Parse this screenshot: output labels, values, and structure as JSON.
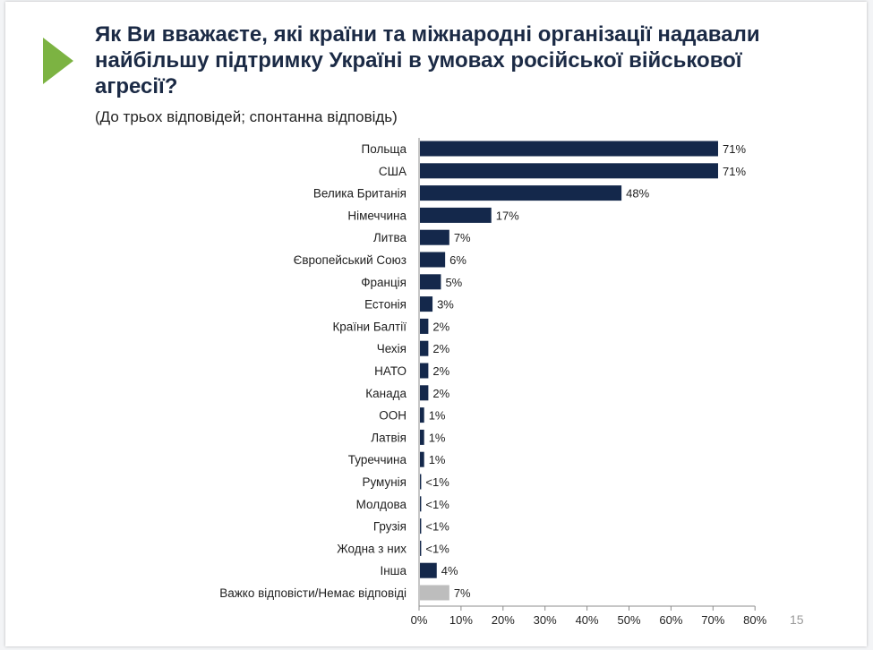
{
  "slide": {
    "title": "Як Ви вважаєте, які країни та міжнародні організації надавали найбільшу підтримку Україні в умовах російської військової агресії?",
    "subtitle": "(До трьох відповідей; спонтанна відповідь)",
    "page_number": "15",
    "accent_color": "#7cb342"
  },
  "chart_data": {
    "type": "bar",
    "orientation": "horizontal",
    "title": "Як Ви вважаєте, які країни та міжнародні організації надавали найбільшу підтримку Україні в умовах російської військової агресії?",
    "subtitle": "(До трьох відповідей; спонтанна відповідь)",
    "xlabel": "",
    "ylabel": "",
    "xlim": [
      0,
      80
    ],
    "ticks": [
      0,
      10,
      20,
      30,
      40,
      50,
      60,
      70,
      80
    ],
    "tick_labels": [
      "0%",
      "10%",
      "20%",
      "30%",
      "40%",
      "50%",
      "60%",
      "70%",
      "80%"
    ],
    "grid": false,
    "bar_color": "#14284b",
    "highlight_color": "#bdbdbd",
    "categories": [
      "Польща",
      "США",
      "Велика Британія",
      "Німеччина",
      "Литва",
      "Європейський Союз",
      "Франція",
      "Естонія",
      "Країни Балтії",
      "Чехія",
      "НАТО",
      "Канада",
      "ООН",
      "Латвія",
      "Туреччина",
      "Румунія",
      "Молдова",
      "Грузія",
      "Жодна з них",
      "Інша",
      "Важко відповісти/Немає відповіді"
    ],
    "values": [
      71,
      71,
      48,
      17,
      7,
      6,
      5,
      3,
      2,
      2,
      2,
      2,
      1,
      1,
      1,
      0.3,
      0.3,
      0.3,
      0.3,
      4,
      7
    ],
    "value_labels": [
      "71%",
      "71%",
      "48%",
      "17%",
      "7%",
      "6%",
      "5%",
      "3%",
      "2%",
      "2%",
      "2%",
      "2%",
      "1%",
      "1%",
      "1%",
      "<1%",
      "<1%",
      "<1%",
      "<1%",
      "4%",
      "7%"
    ],
    "bar_colors": [
      "#14284b",
      "#14284b",
      "#14284b",
      "#14284b",
      "#14284b",
      "#14284b",
      "#14284b",
      "#14284b",
      "#14284b",
      "#14284b",
      "#14284b",
      "#14284b",
      "#14284b",
      "#14284b",
      "#14284b",
      "#14284b",
      "#14284b",
      "#14284b",
      "#14284b",
      "#14284b",
      "#bdbdbd"
    ]
  }
}
